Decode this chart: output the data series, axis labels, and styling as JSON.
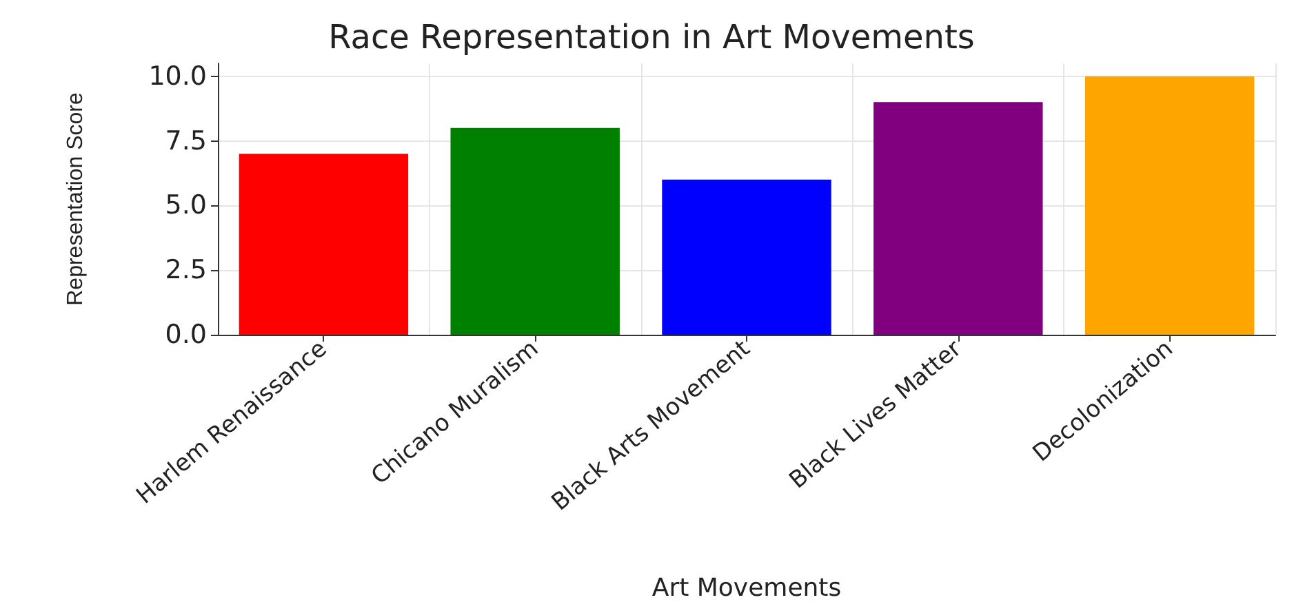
{
  "chart_data": {
    "type": "bar",
    "title": "Race Representation in Art Movements",
    "xlabel": "Art Movements",
    "ylabel": "Representation Score",
    "categories": [
      "Harlem Renaissance",
      "Chicano Muralism",
      "Black Arts Movement",
      "Black Lives Matter",
      "Decolonization"
    ],
    "values": [
      7,
      8,
      6,
      9,
      10
    ],
    "colors": [
      "#ff0000",
      "#008000",
      "#0000ff",
      "#800080",
      "#ffa500"
    ],
    "ylim": [
      0,
      10.5
    ],
    "yticks": [
      {
        "value": 0,
        "label": "0.0"
      },
      {
        "value": 2.5,
        "label": "2.5"
      },
      {
        "value": 5,
        "label": "5.0"
      },
      {
        "value": 7.5,
        "label": "7.5"
      },
      {
        "value": 10,
        "label": "10.0"
      }
    ],
    "grid": true
  }
}
